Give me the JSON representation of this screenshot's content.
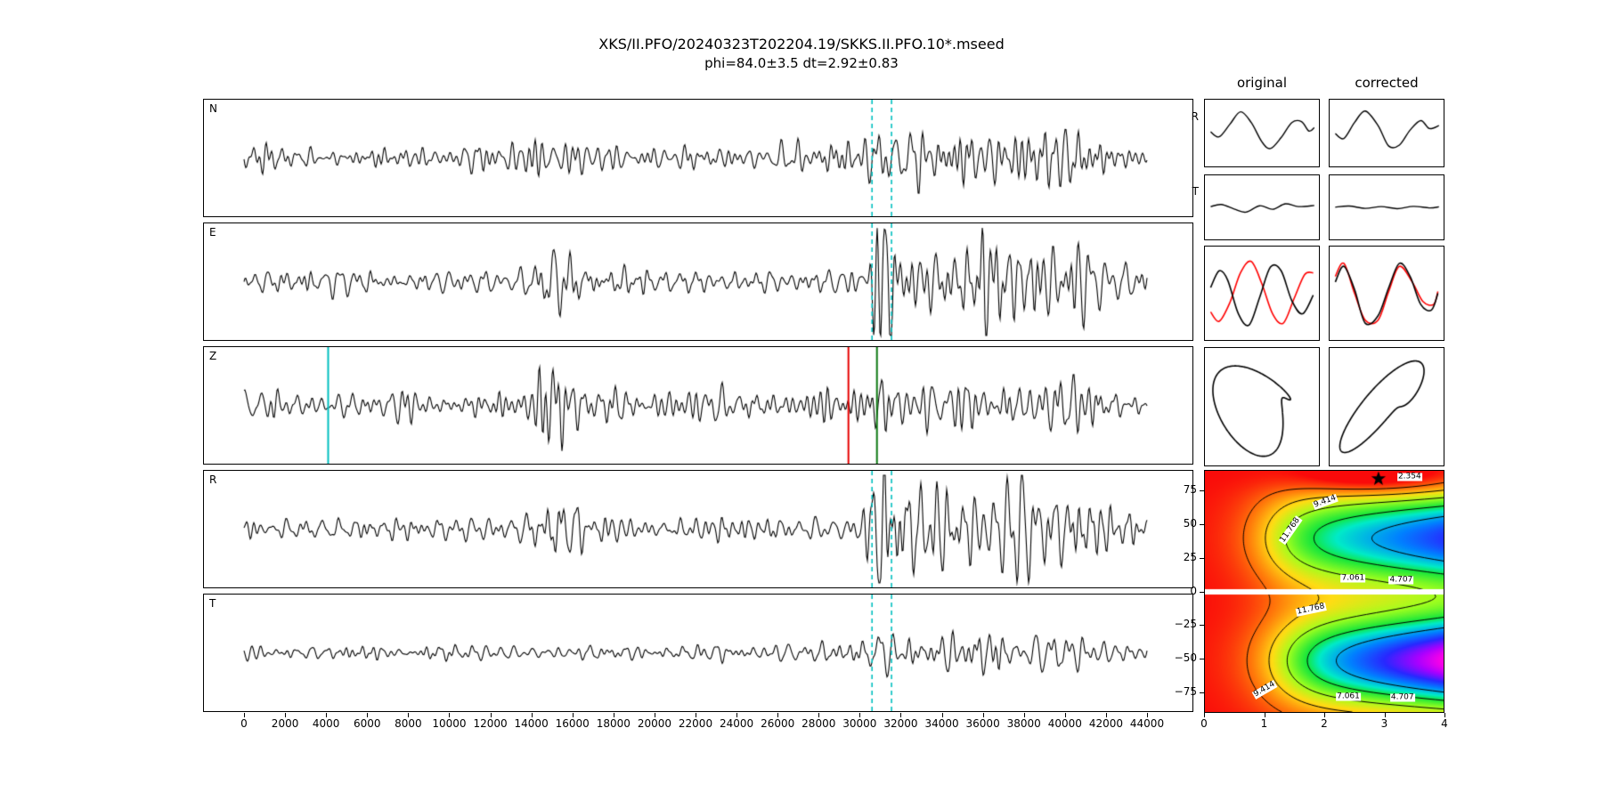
{
  "title": {
    "line1": "XKS/II.PFO/20240323T202204.19/SKKS.II.PFO.10*.mseed",
    "line2": "phi=84.0±3.5 dt=2.92±0.83"
  },
  "colors": {
    "trace": "#000000",
    "cyan": "#00bfbf",
    "red": "#e60000",
    "green": "#0e7a12",
    "overlay_red": "#ff0000",
    "contour": "#000000"
  },
  "chart_data": {
    "type": "composite",
    "waveforms": {
      "xaxis": {
        "min": 0,
        "max": 44000,
        "ticks": [
          0,
          2000,
          4000,
          6000,
          8000,
          10000,
          12000,
          14000,
          16000,
          18000,
          20000,
          22000,
          24000,
          26000,
          28000,
          30000,
          32000,
          34000,
          36000,
          38000,
          40000,
          42000,
          44000
        ]
      },
      "window_lines_dashed": [
        30600,
        31550
      ],
      "panels": [
        {
          "label": "N",
          "seed": 11,
          "base": 0.3,
          "scale": 26,
          "dashed": true,
          "bumps": [
            [
              15500,
              2500,
              0.18
            ],
            [
              27000,
              2500,
              0.12
            ],
            [
              30900,
              450,
              0.6
            ],
            [
              33500,
              2000,
              0.3
            ],
            [
              37500,
              1500,
              0.4
            ],
            [
              40500,
              1800,
              0.35
            ]
          ]
        },
        {
          "label": "E",
          "seed": 22,
          "base": 0.3,
          "scale": 26,
          "dashed": true,
          "bumps": [
            [
              15300,
              900,
              0.4
            ],
            [
              17000,
              1500,
              0.22
            ],
            [
              30650,
              350,
              1.5
            ],
            [
              31400,
              350,
              1.0
            ],
            [
              34000,
              1800,
              0.65
            ],
            [
              36900,
              700,
              1.3
            ],
            [
              38500,
              1500,
              0.5
            ],
            [
              41000,
              1500,
              0.5
            ]
          ]
        },
        {
          "label": "Z",
          "seed": 33,
          "base": 0.38,
          "scale": 26,
          "dashed": false,
          "bumps": [
            [
              15200,
              500,
              0.95
            ],
            [
              16800,
              1500,
              0.4
            ],
            [
              23000,
              2000,
              0.15
            ],
            [
              30900,
              500,
              0.45
            ],
            [
              33000,
              3000,
              0.25
            ],
            [
              37000,
              2000,
              0.3
            ],
            [
              40500,
              1500,
              0.28
            ]
          ],
          "solid_lines": [
            {
              "x": 4100,
              "color": "#00bfbf"
            },
            {
              "x": 29450,
              "color": "#e60000"
            },
            {
              "x": 30840,
              "color": "#0e7a12"
            }
          ]
        },
        {
          "label": "R",
          "seed": 44,
          "base": 0.3,
          "scale": 26,
          "dashed": true,
          "bumps": [
            [
              15300,
              900,
              0.45
            ],
            [
              30900,
              400,
              1.7
            ],
            [
              31700,
              400,
              1.0
            ],
            [
              34200,
              1800,
              0.75
            ],
            [
              37000,
              600,
              1.4
            ],
            [
              38800,
              1500,
              0.6
            ],
            [
              41500,
              1500,
              0.55
            ]
          ]
        },
        {
          "label": "T",
          "seed": 55,
          "base": 0.26,
          "scale": 22,
          "dashed": true,
          "bumps": [
            [
              30900,
              400,
              0.55
            ],
            [
              33500,
              2500,
              0.3
            ],
            [
              37000,
              1500,
              0.35
            ],
            [
              40000,
              1500,
              0.32
            ]
          ]
        }
      ]
    },
    "pair_panels": {
      "columns": [
        "original",
        "corrected"
      ],
      "rows": [
        "R",
        "T"
      ],
      "rt_curves": {
        "orig_R": [
          [
            0.02,
            0.05
          ],
          [
            0.1,
            -0.15
          ],
          [
            0.2,
            0.35
          ],
          [
            0.3,
            0.85
          ],
          [
            0.4,
            0.42
          ],
          [
            0.5,
            -0.35
          ],
          [
            0.58,
            -0.62
          ],
          [
            0.68,
            -0.18
          ],
          [
            0.78,
            0.42
          ],
          [
            0.87,
            0.46
          ],
          [
            0.94,
            0.08
          ],
          [
            0.99,
            0.22
          ]
        ],
        "orig_T": [
          [
            0.02,
            0.05
          ],
          [
            0.12,
            0.18
          ],
          [
            0.24,
            -0.1
          ],
          [
            0.35,
            -0.3
          ],
          [
            0.48,
            0.1
          ],
          [
            0.6,
            -0.12
          ],
          [
            0.72,
            0.22
          ],
          [
            0.84,
            0.05
          ],
          [
            0.99,
            0.12
          ]
        ],
        "corr_R": [
          [
            0.02,
            -0.02
          ],
          [
            0.1,
            -0.22
          ],
          [
            0.2,
            0.42
          ],
          [
            0.3,
            0.88
          ],
          [
            0.42,
            0.3
          ],
          [
            0.52,
            -0.52
          ],
          [
            0.62,
            -0.48
          ],
          [
            0.72,
            0.12
          ],
          [
            0.82,
            0.5
          ],
          [
            0.9,
            0.18
          ],
          [
            0.99,
            0.3
          ]
        ],
        "corr_T": [
          [
            0.02,
            0.02
          ],
          [
            0.15,
            0.1
          ],
          [
            0.3,
            -0.08
          ],
          [
            0.45,
            0.06
          ],
          [
            0.6,
            -0.1
          ],
          [
            0.75,
            0.08
          ],
          [
            0.9,
            -0.04
          ],
          [
            0.99,
            0.04
          ]
        ]
      },
      "overlay": {
        "orig": {
          "black": [
            [
              0.02,
              0.15
            ],
            [
              0.1,
              0.6
            ],
            [
              0.18,
              0.35
            ],
            [
              0.28,
              -0.55
            ],
            [
              0.38,
              -0.85
            ],
            [
              0.48,
              -0.1
            ],
            [
              0.58,
              0.7
            ],
            [
              0.68,
              0.6
            ],
            [
              0.78,
              -0.2
            ],
            [
              0.88,
              -0.55
            ],
            [
              0.98,
              -0.05
            ]
          ],
          "red": [
            [
              0.02,
              -0.5
            ],
            [
              0.1,
              -0.75
            ],
            [
              0.2,
              -0.25
            ],
            [
              0.3,
              0.55
            ],
            [
              0.4,
              0.85
            ],
            [
              0.5,
              0.25
            ],
            [
              0.6,
              -0.55
            ],
            [
              0.7,
              -0.8
            ],
            [
              0.8,
              -0.15
            ],
            [
              0.9,
              0.5
            ],
            [
              0.98,
              0.55
            ]
          ]
        },
        "corr": {
          "black": [
            [
              0.02,
              0.3
            ],
            [
              0.1,
              0.72
            ],
            [
              0.2,
              0.1
            ],
            [
              0.3,
              -0.8
            ],
            [
              0.42,
              -0.6
            ],
            [
              0.52,
              0.15
            ],
            [
              0.62,
              0.8
            ],
            [
              0.72,
              0.45
            ],
            [
              0.82,
              -0.3
            ],
            [
              0.92,
              -0.45
            ],
            [
              0.98,
              0.0
            ]
          ],
          "red": [
            [
              0.02,
              0.45
            ],
            [
              0.1,
              0.8
            ],
            [
              0.2,
              0.0
            ],
            [
              0.3,
              -0.72
            ],
            [
              0.42,
              -0.72
            ],
            [
              0.52,
              0.05
            ],
            [
              0.62,
              0.72
            ],
            [
              0.74,
              0.3
            ],
            [
              0.84,
              -0.22
            ],
            [
              0.94,
              -0.3
            ],
            [
              0.98,
              0.05
            ]
          ]
        }
      },
      "particle_motion": {
        "orig": {
          "ax": [
            0.85,
            0.35
          ],
          "fx": [
            1.3,
            2.6
          ],
          "px": [
            0.4,
            2.1
          ],
          "ay": [
            0.8,
            0.45
          ],
          "fy": [
            1.3,
            2.6
          ],
          "py": [
            2.0,
            4.5
          ]
        },
        "corr": {
          "ax": [
            0.9,
            0.3
          ],
          "fx": [
            1.4,
            2.8
          ],
          "px": [
            0.2,
            1.0
          ],
          "ay": [
            0.85,
            0.4
          ],
          "fy": [
            1.4,
            2.8
          ],
          "py": [
            0.8,
            1.6
          ]
        }
      }
    },
    "error_surface": {
      "xlim": [
        0,
        4
      ],
      "ylim": [
        -90,
        90
      ],
      "xticks": [
        0,
        1,
        2,
        3,
        4
      ],
      "yticks": [
        {
          "v": 75,
          "label": "75"
        },
        {
          "v": 50,
          "label": "50"
        },
        {
          "v": 25,
          "label": "25"
        },
        {
          "v": 0,
          "label": "0"
        },
        {
          "v": -25,
          "label": "−25"
        },
        {
          "v": -50,
          "label": "−50"
        },
        {
          "v": -75,
          "label": "−75"
        }
      ],
      "contour_levels": [
        2.354,
        4.707,
        7.061,
        9.414,
        11.768
      ],
      "best_fit": {
        "dt": 2.92,
        "phi": 84.0
      },
      "star_marker": true,
      "field": {
        "bump_top": {
          "amp": 14,
          "phi_c": 40,
          "phi_s": 27,
          "dt_mid": 1.0,
          "dt_w": 0.35,
          "ramp": [
            0.6,
            0.4,
            1.4
          ]
        },
        "bump_bottom": {
          "amp": 17,
          "phi_c": -52,
          "phi_s": 27,
          "dt_mid": 1.15,
          "dt_w": 0.38,
          "ramp": [
            0.55,
            0.45,
            1.5
          ]
        },
        "dip": {
          "amp": 4.2,
          "dt_c": 2.92,
          "dt_s": 1.0,
          "phi_c": 86,
          "phi_s": 9
        },
        "max": 17
      },
      "colormap": [
        [
          0.0,
          [
            250,
            10,
            10
          ]
        ],
        [
          0.16,
          [
            255,
            120,
            10
          ]
        ],
        [
          0.3,
          [
            255,
            220,
            20
          ]
        ],
        [
          0.42,
          [
            160,
            255,
            30
          ]
        ],
        [
          0.55,
          [
            20,
            230,
            60
          ]
        ],
        [
          0.62,
          [
            0,
            235,
            200
          ]
        ],
        [
          0.74,
          [
            0,
            130,
            255
          ]
        ],
        [
          0.84,
          [
            40,
            40,
            255
          ]
        ],
        [
          0.93,
          [
            170,
            0,
            255
          ]
        ],
        [
          1.0,
          [
            255,
            0,
            230
          ]
        ]
      ],
      "contour_labels": [
        {
          "text": "2.354",
          "nx": 0.855,
          "ny": 0.03,
          "rot": 0
        },
        {
          "text": "9.414",
          "nx": 0.505,
          "ny": 0.132,
          "rot": -20
        },
        {
          "text": "11.768",
          "nx": 0.36,
          "ny": 0.25,
          "rot": -55
        },
        {
          "text": "7.061",
          "nx": 0.62,
          "ny": 0.447,
          "rot": 0
        },
        {
          "text": "4.707",
          "nx": 0.82,
          "ny": 0.455,
          "rot": 0
        },
        {
          "text": "11.768",
          "nx": 0.445,
          "ny": 0.575,
          "rot": -12
        },
        {
          "text": "9.414",
          "nx": 0.25,
          "ny": 0.905,
          "rot": -30
        },
        {
          "text": "7.061",
          "nx": 0.6,
          "ny": 0.934,
          "rot": 0
        },
        {
          "text": "4.707",
          "nx": 0.825,
          "ny": 0.938,
          "rot": 0
        }
      ]
    }
  }
}
